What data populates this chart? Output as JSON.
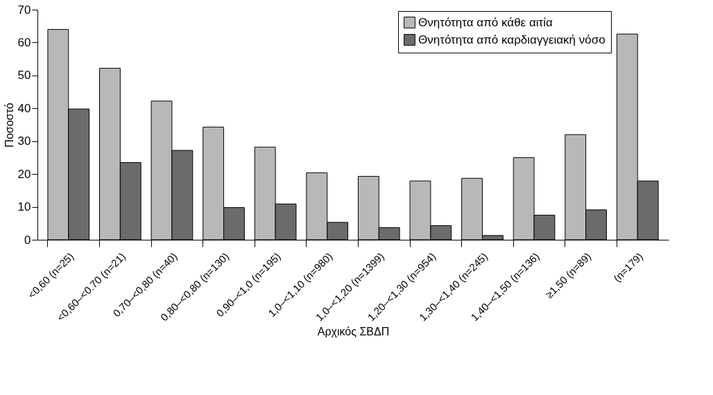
{
  "chart_data": {
    "type": "bar",
    "xlabel": "Αρχικός ΣΒΔΠ",
    "ylabel": "Ποσοστό",
    "categories": [
      "<0,60 (n=25)",
      "<0,60–<0.70 (n=21)",
      "0,70–<0,80 (n=40)",
      "0,80–<0,80 (n=130)",
      "0,90–<1,0 (n=195)",
      "1,0–<1,10 (n=980)",
      "1,0–<1,20 (n=1399)",
      "1,20–<1,30 (n=954)",
      "1,30–<1,40 (n=245)",
      "1,40–<1,50 (n=136)",
      "≥1,50 (n=89)",
      "(n=179)"
    ],
    "series": [
      {
        "name": "Θνητότητα από κάθε αιτία",
        "color": "#b8b8b8",
        "values": [
          64,
          52.2,
          42.2,
          34.3,
          28.2,
          20.4,
          19.3,
          17.9,
          18.7,
          25,
          32,
          62.6
        ]
      },
      {
        "name": "Θνητότητα από καρδιαγγειακή νόσο",
        "color": "#6b6b6b",
        "values": [
          39.8,
          23.5,
          27.2,
          9.8,
          10.9,
          5.3,
          3.7,
          4.3,
          1.3,
          7.5,
          9.1,
          17.9
        ]
      }
    ],
    "ylim": [
      0,
      70
    ],
    "yticks": [
      0,
      10,
      20,
      30,
      40,
      50,
      60,
      70
    ],
    "grid": false,
    "legend": "top right"
  }
}
